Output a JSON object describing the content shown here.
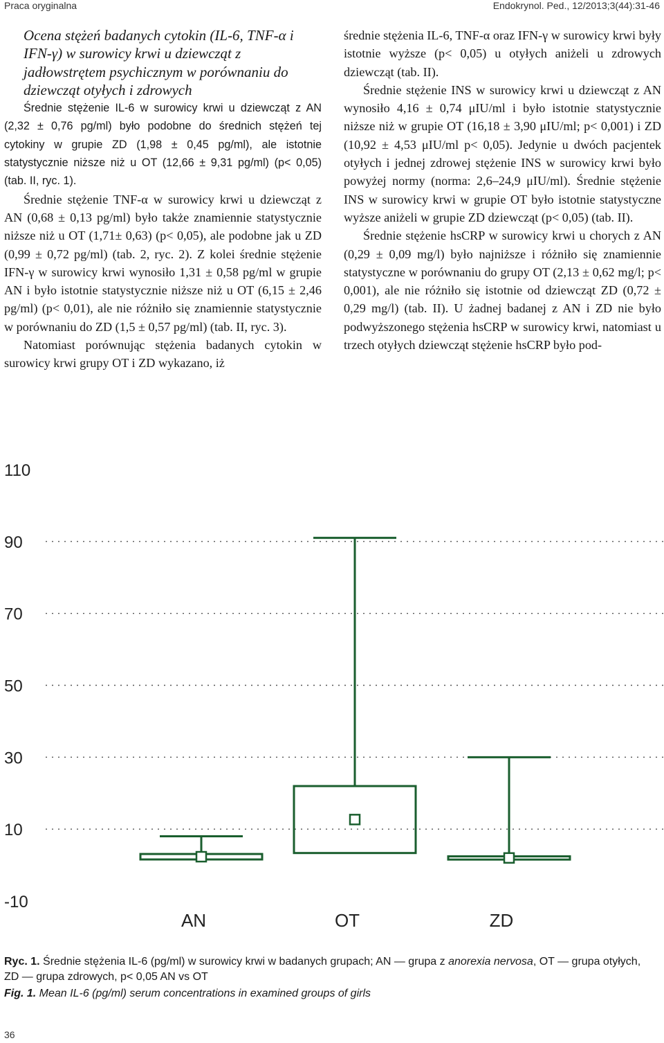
{
  "header": {
    "left": "Praca oryginalna",
    "right": "Endokrynol. Ped., 12/2013;3(44):31-46"
  },
  "left_column": {
    "section_title": "Ocena stężeń badanych cytokin (IL-6, TNF-α i IFN-γ) w surowicy krwi u dziewcząt z jadłowstrętem psychicznym w porównaniu do dziewcząt otyłych i zdrowych",
    "paragraphs": [
      "Średnie stężenie IL-6 w surowicy krwi u dziewcząt z AN (2,32 ± 0,76 pg/ml) było podobne do średnich stężeń tej cytokiny w grupie ZD (1,98 ± 0,45 pg/ml), ale istotnie statystycznie niższe niż u OT (12,66 ± 9,31 pg/ml) (p< 0,05) (tab. II, ryc. 1).",
      "Średnie stężenie TNF-α w surowicy krwi u dziewcząt z AN (0,68 ± 0,13 pg/ml) było także znamiennie statystycznie niższe niż u OT (1,71± 0,63) (p< 0,05), ale podobne jak u ZD (0,99 ± 0,72 pg/ml) (tab. 2, ryc. 2). Z kolei średnie stężenie IFN-γ w surowicy krwi wynosiło 1,31 ± 0,58 pg/ml w grupie AN i było istotnie statystycznie niższe niż u OT (6,15 ± 2,46 pg/ml) (p< 0,01), ale nie różniło się znamiennie statystycznie w porównaniu do ZD (1,5 ± 0,57 pg/ml) (tab. II, ryc. 3).",
      "Natomiast porównując stężenia badanych cytokin w surowicy krwi grupy OT i ZD wykazano, iż"
    ]
  },
  "right_column": {
    "paragraphs": [
      "średnie stężenia IL-6, TNF-α oraz IFN-γ w surowicy krwi były istotnie wyższe (p< 0,05) u otyłych aniżeli u zdrowych dziewcząt (tab. II).",
      "Średnie stężenie INS w surowicy krwi u dziewcząt z AN wynosiło 4,16 ± 0,74 μIU/ml i było istotnie statystycznie niższe niż w grupie OT (16,18 ± 3,90 μIU/ml; p< 0,001) i ZD (10,92 ± 4,53 μIU/ml p< 0,05). Jedynie u dwóch pacjentek otyłych i jednej zdrowej stężenie INS w surowicy krwi było powyżej normy (norma: 2,6–24,9 μIU/ml). Średnie stężenie INS w surowicy krwi w grupie OT było istotnie statystyczne wyższe aniżeli w grupie ZD dziewcząt (p< 0,05) (tab. II).",
      "Średnie stężenie hsCRP w surowicy krwi u chorych z AN (0,29 ± 0,09 mg/l) było najniższe i różniło się znamiennie statystyczne w porównaniu do grupy OT (2,13 ± 0,62 mg/l; p< 0,001), ale nie różniło się istotnie od dziewcząt ZD (0,72 ± 0,29 mg/l) (tab. II). U żadnej badanej z AN i ZD nie było podwyższonego stężenia hsCRP w surowicy krwi, natomiast u trzech otyłych dziewcząt stężenie hsCRP było pod-"
    ]
  },
  "chart_data": {
    "type": "box",
    "categories": [
      "AN",
      "OT",
      "ZD"
    ],
    "ylim": [
      -10,
      110
    ],
    "yticks": [
      110,
      90,
      70,
      50,
      30,
      10,
      -10
    ],
    "ytick_labels": [
      "110",
      "90",
      "70",
      "50",
      "30",
      "10",
      "-10"
    ],
    "grid": true,
    "series": [
      {
        "values": [
          {
            "category": "AN",
            "mean": 2.32,
            "box_low": 1.56,
            "box_high": 3.08,
            "whisker_low": 1.0,
            "whisker_high": 8.0
          },
          {
            "category": "OT",
            "mean": 12.66,
            "box_low": 3.35,
            "box_high": 21.97,
            "whisker_low": 1.0,
            "whisker_high": 91.0
          },
          {
            "category": "ZD",
            "mean": 1.98,
            "box_low": 1.53,
            "box_high": 2.43,
            "whisker_low": 1.0,
            "whisker_high": 30.0
          }
        ]
      }
    ],
    "colors": {
      "series": "#1a5e2e",
      "grid": "#555555",
      "axis": "#222222"
    }
  },
  "captions": {
    "pl_label": "Ryc. 1.",
    "pl_text": " Średnie stężenia IL-6 (pg/ml) w surowicy krwi w badanych grupach; AN — grupa z ",
    "pl_italic": "anorexia nervosa",
    "pl_text2": ", OT — grupa otyłych, ZD — grupa zdrowych, p< 0,05 AN vs OT",
    "en_label": "Fig. 1.",
    "en_text": " Mean IL-6 (pg/ml) serum concentrations in examined groups of girls"
  },
  "page_number": "36"
}
